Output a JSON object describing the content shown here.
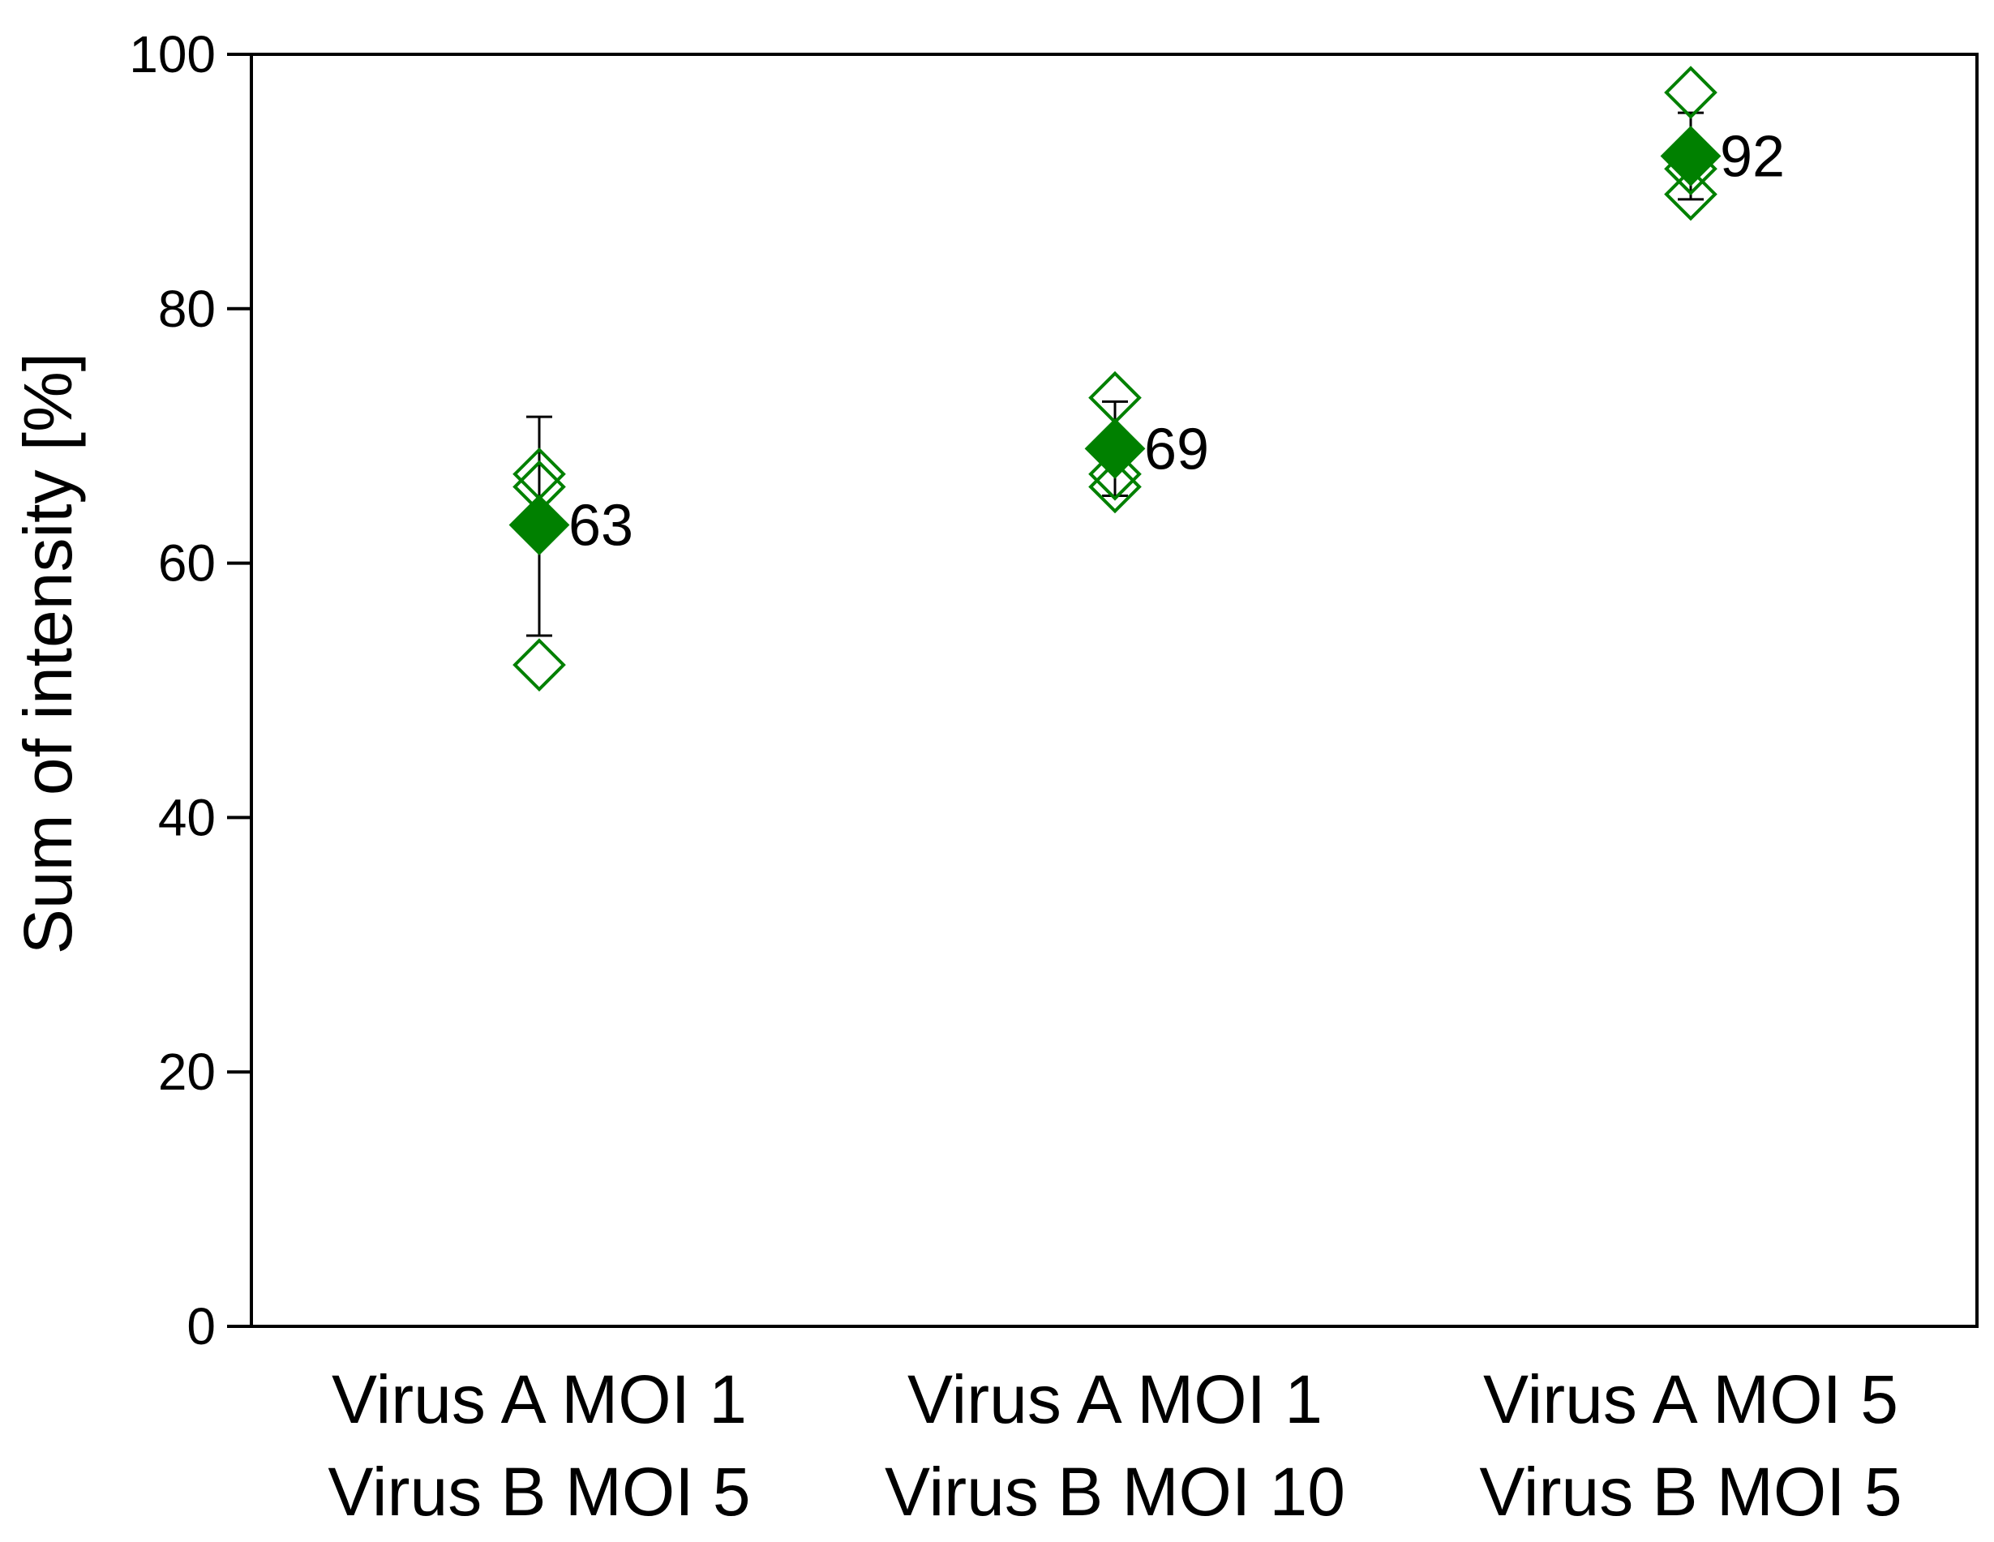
{
  "chart_data": {
    "type": "scatter",
    "title": "",
    "xlabel": "",
    "ylabel": "Sum of intensity [%]",
    "ylim": [
      0,
      100
    ],
    "yticks": [
      0,
      20,
      40,
      60,
      80,
      100
    ],
    "grid": false,
    "legend": "none",
    "categories": [
      [
        "Virus A MOI 1",
        "Virus B MOI 5"
      ],
      [
        "Virus A MOI 1",
        "Virus B MOI 10"
      ],
      [
        "Virus A MOI 5",
        "Virus B MOI 5"
      ]
    ],
    "replicates": [
      [
        67,
        66,
        52
      ],
      [
        73,
        67,
        66
      ],
      [
        97,
        91,
        89
      ]
    ],
    "means": [
      63,
      69,
      92
    ],
    "mean_labels": [
      "63",
      "69",
      "92"
    ],
    "error_bars": [
      [
        54.3,
        71.5
      ],
      [
        65.3,
        72.7
      ],
      [
        88.6,
        95.4
      ]
    ],
    "colors": {
      "marker": "#008000",
      "axis": "#000000",
      "error_bar": "#000000"
    }
  }
}
